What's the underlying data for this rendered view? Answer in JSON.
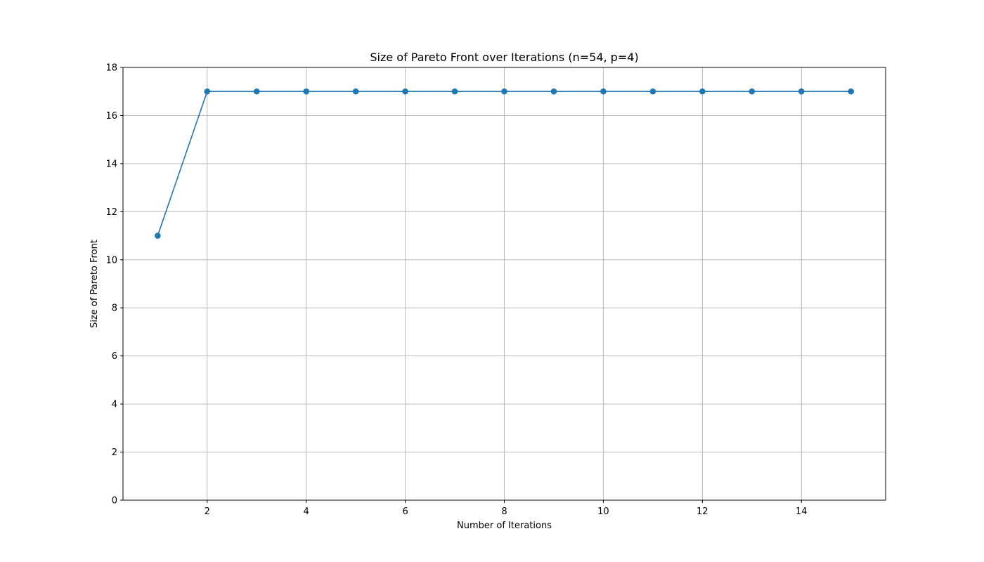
{
  "chart_data": {
    "type": "line",
    "title": "Size of Pareto Front over Iterations (n=54, p=4)",
    "xlabel": "Number of Iterations",
    "ylabel": "Size of Pareto Front",
    "x": [
      1,
      2,
      3,
      4,
      5,
      6,
      7,
      8,
      9,
      10,
      11,
      12,
      13,
      14,
      15
    ],
    "series": [
      {
        "values": [
          11,
          17,
          17,
          17,
          17,
          17,
          17,
          17,
          17,
          17,
          17,
          17,
          17,
          17,
          17
        ],
        "color": "#1f77b4",
        "marker": "circle"
      }
    ],
    "xlim": [
      0.3,
      15.7
    ],
    "ylim": [
      0,
      18
    ],
    "xticks": [
      "2",
      "4",
      "6",
      "8",
      "10",
      "12",
      "14"
    ],
    "yticks": [
      "0",
      "2",
      "4",
      "6",
      "8",
      "10",
      "12",
      "14",
      "16",
      "18"
    ],
    "grid": true,
    "legend": "none"
  }
}
